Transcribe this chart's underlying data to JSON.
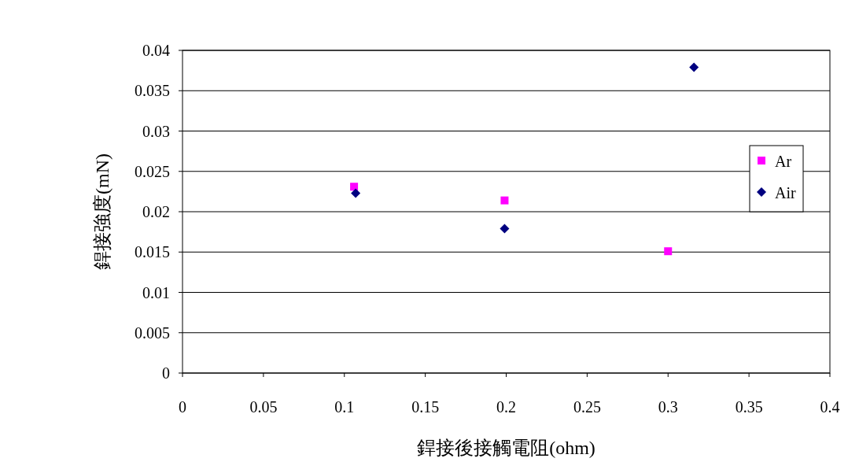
{
  "chart_data": {
    "type": "scatter",
    "xlabel": "銲接後接觸電阻(ohm)",
    "ylabel": "銲接強度(mN)",
    "xlim": [
      0,
      0.4
    ],
    "xticks": [
      0,
      0.05,
      0.1,
      0.15,
      0.2,
      0.25,
      0.3,
      0.35,
      0.4
    ],
    "ylim": [
      0,
      0.04
    ],
    "yticks": [
      0,
      0.005,
      0.01,
      0.015,
      0.02,
      0.025,
      0.03,
      0.035,
      0.04
    ],
    "grid": "y",
    "legend": "right",
    "series": [
      {
        "name": "Ar",
        "color": "#ff00ff",
        "marker": "square",
        "x": [
          0.106,
          0.199,
          0.3
        ],
        "values": [
          0.0231,
          0.0214,
          0.0151
        ]
      },
      {
        "name": "Air",
        "color": "#000080",
        "marker": "diamond",
        "x": [
          0.107,
          0.199,
          0.316
        ],
        "values": [
          0.0223,
          0.0179,
          0.0379
        ]
      }
    ]
  }
}
